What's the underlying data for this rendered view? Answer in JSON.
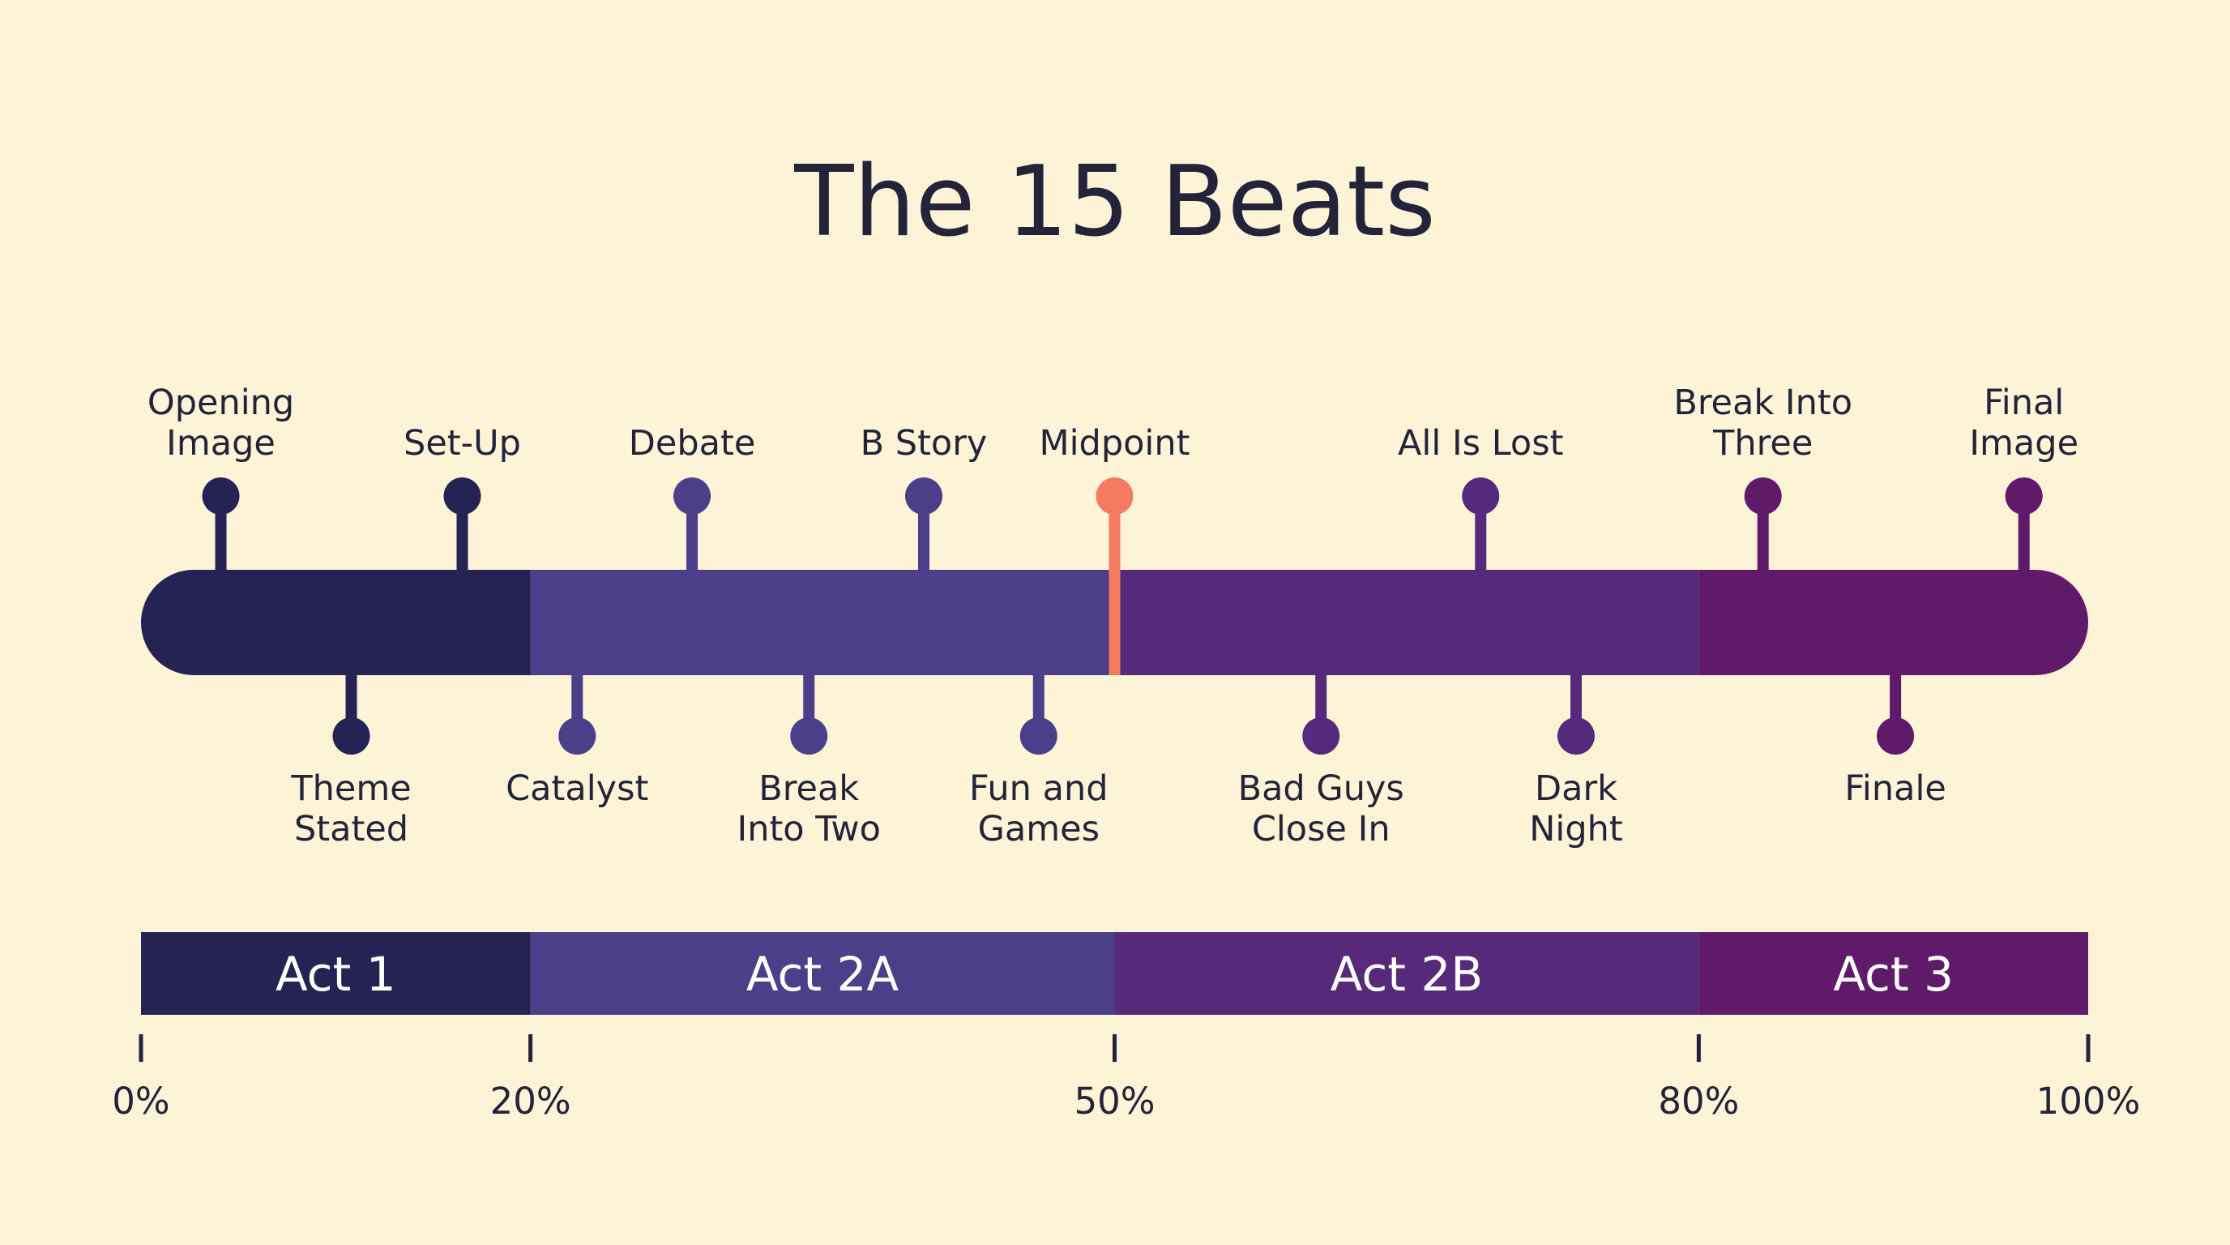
{
  "title": "The 15 Beats",
  "colors": {
    "background": "#fdf4d8",
    "text": "#23233a",
    "act1": "#252353",
    "act2a": "#4a3f88",
    "act2b": "#56297a",
    "act3": "#5f1a69",
    "midpoint": "#f47b61"
  },
  "acts": [
    {
      "label": "Act 1",
      "start": 0,
      "end": 20,
      "color": "#252353"
    },
    {
      "label": "Act 2A",
      "start": 20,
      "end": 50,
      "color": "#4a3f88"
    },
    {
      "label": "Act 2B",
      "start": 50,
      "end": 80,
      "color": "#56297a"
    },
    {
      "label": "Act 3",
      "start": 80,
      "end": 100,
      "color": "#5f1a69"
    }
  ],
  "beats": [
    {
      "id": "opening-image",
      "lines": [
        "Opening",
        "Image"
      ],
      "pos": 4.1,
      "side": "top"
    },
    {
      "id": "theme-stated",
      "lines": [
        "Theme",
        "Stated"
      ],
      "pos": 10.8,
      "side": "bottom"
    },
    {
      "id": "set-up",
      "lines": [
        "Set-Up"
      ],
      "pos": 16.5,
      "side": "top"
    },
    {
      "id": "catalyst",
      "lines": [
        "Catalyst"
      ],
      "pos": 22.4,
      "side": "bottom"
    },
    {
      "id": "debate",
      "lines": [
        "Debate"
      ],
      "pos": 28.3,
      "side": "top"
    },
    {
      "id": "break-into-two",
      "lines": [
        "Break",
        "Into Two"
      ],
      "pos": 34.3,
      "side": "bottom"
    },
    {
      "id": "b-story",
      "lines": [
        "B Story"
      ],
      "pos": 40.2,
      "side": "top"
    },
    {
      "id": "fun-and-games",
      "lines": [
        "Fun and",
        "Games"
      ],
      "pos": 46.1,
      "side": "bottom"
    },
    {
      "id": "midpoint",
      "lines": [
        "Midpoint"
      ],
      "pos": 50,
      "side": "top",
      "highlight": true
    },
    {
      "id": "bad-guys-close-in",
      "lines": [
        "Bad Guys",
        "Close In"
      ],
      "pos": 60.6,
      "side": "bottom"
    },
    {
      "id": "all-is-lost",
      "lines": [
        "All Is Lost"
      ],
      "pos": 68.8,
      "side": "top"
    },
    {
      "id": "dark-night",
      "lines": [
        "Dark",
        "Night"
      ],
      "pos": 73.7,
      "side": "bottom"
    },
    {
      "id": "break-into-three",
      "lines": [
        "Break Into",
        "Three"
      ],
      "pos": 83.3,
      "side": "top"
    },
    {
      "id": "finale",
      "lines": [
        "Finale"
      ],
      "pos": 90.1,
      "side": "bottom"
    },
    {
      "id": "final-image",
      "lines": [
        "Final",
        "Image"
      ],
      "pos": 96.7,
      "side": "top"
    }
  ],
  "ticks": [
    {
      "value": 0,
      "label": "0%"
    },
    {
      "value": 20,
      "label": "20%"
    },
    {
      "value": 50,
      "label": "50%"
    },
    {
      "value": 80,
      "label": "80%"
    },
    {
      "value": 100,
      "label": "100%"
    }
  ]
}
